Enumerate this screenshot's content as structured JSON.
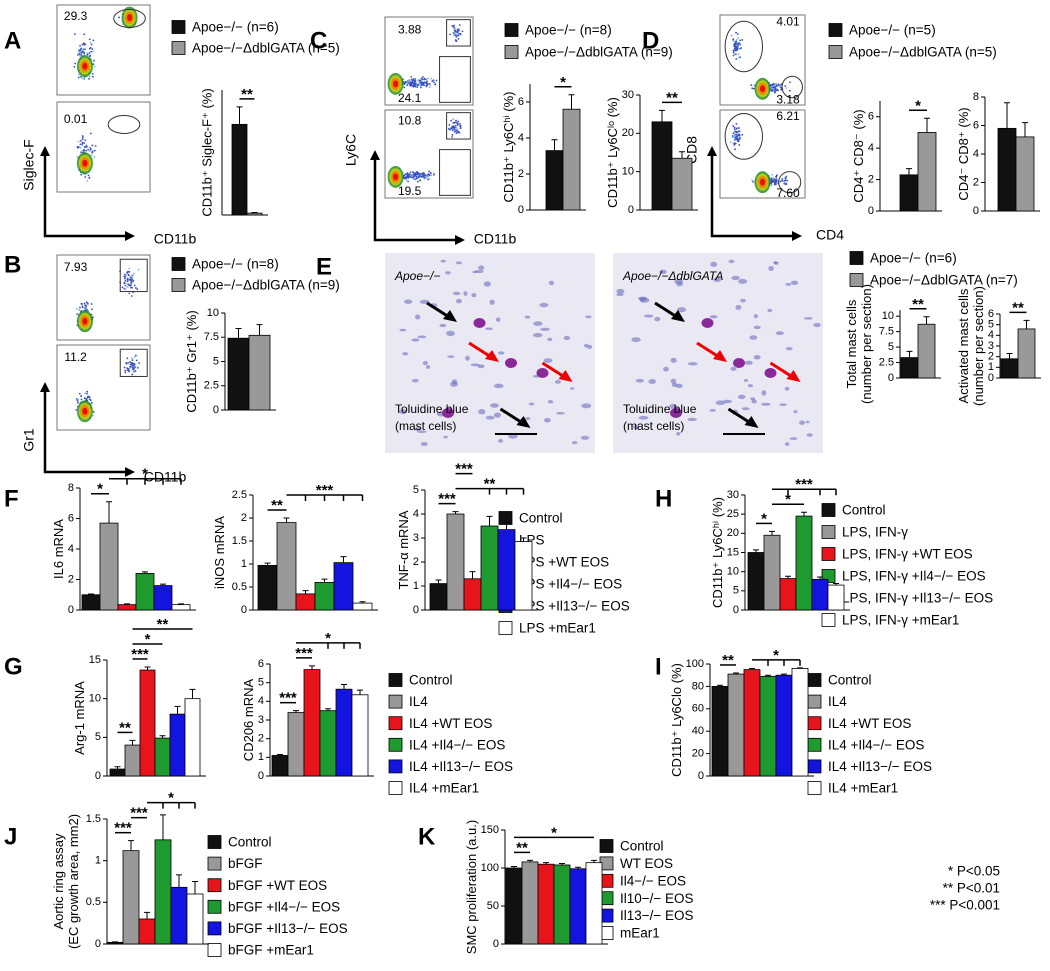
{
  "panel_letters": [
    "A",
    "B",
    "C",
    "D",
    "E",
    "F",
    "G",
    "H",
    "I",
    "J",
    "K"
  ],
  "flow_panels": [
    {
      "y_label": "Siglec-F",
      "x_label": "CD11b",
      "gates": [
        "29.3",
        "0.01"
      ]
    },
    {
      "y_label": "Gr1",
      "x_label": "CD11b",
      "gates": [
        "7.93",
        "11.2"
      ]
    },
    {
      "y_label": "Ly6C",
      "x_label": "CD11b",
      "gates": [
        "3.88",
        "24.1",
        "10.8",
        "19.5"
      ]
    },
    {
      "y_label": "CD8",
      "x_label": "CD4",
      "gates": [
        "4.01",
        "3.18",
        "6.21",
        "7.60"
      ]
    }
  ],
  "histology": {
    "labels": [
      "Apoe−/−",
      "Apoe−/−ΔdblGATA"
    ],
    "stain": [
      "Toluidine blue",
      "(mast cells)"
    ]
  },
  "legends": [
    {
      "items": [
        "Apoe−/− (n=6)",
        "Apoe−/−ΔdblGATA (n=5)"
      ]
    },
    {
      "items": [
        "Apoe−/− (n=8)",
        "Apoe−/−ΔdblGATA (n=9)"
      ]
    },
    {
      "items": [
        "Apoe−/− (n=8)",
        "Apoe−/−ΔdblGATA (n=9)"
      ]
    },
    {
      "items": [
        "Apoe−/− (n=5)",
        "Apoe−/−ΔdblGATA (n=5)"
      ]
    },
    {
      "items": [
        "Apoe−/− (n=6)",
        "Apoe−/−ΔdblGATA (n=7)"
      ]
    },
    {
      "items": [
        "Control",
        "LPS",
        "LPS +WT EOS",
        "LPS +Il4−/− EOS",
        "LPS +Il13−/− EOS",
        "LPS +mEar1"
      ]
    },
    {
      "items": [
        "Control",
        "LPS, IFN-γ",
        "LPS, IFN-γ +WT EOS",
        "LPS, IFN-γ +Il4−/− EOS",
        "LPS, IFN-γ +Il13−/− EOS",
        "LPS, IFN-γ +mEar1"
      ]
    },
    {
      "items": [
        "Control",
        "IL4",
        "IL4 +WT EOS",
        "IL4 +Il4−/− EOS",
        "IL4 +Il13−/− EOS",
        "IL4 +mEar1"
      ]
    },
    {
      "items": [
        "Control",
        "IL4",
        "IL4 +WT EOS",
        "IL4 +Il4−/− EOS",
        "IL4 +Il13−/− EOS",
        "IL4 +mEar1"
      ]
    },
    {
      "items": [
        "Control",
        "bFGF",
        "bFGF +WT EOS",
        "bFGF +Il4−/− EOS",
        "bFGF +Il13−/− EOS",
        "bFGF +mEar1"
      ]
    },
    {
      "items": [
        "Control",
        "WT EOS",
        "Il4−/− EOS",
        "Il10−/− EOS",
        "Il13−/− EOS",
        "mEar1"
      ]
    }
  ],
  "significance_key": [
    "* P<0.05",
    "** P<0.01",
    "*** P<0.001"
  ],
  "chart_data": [
    {
      "type": "bar",
      "ylabel": [
        "CD11b⁺ Siglec-F⁺ (%)"
      ],
      "values": [
        14.5,
        0.3
      ],
      "errors": [
        2.8,
        0.1
      ],
      "colors": [
        "#111111",
        "#999999"
      ],
      "ylim": [
        0,
        20
      ],
      "sig": [
        {
          "text": "**",
          "bars": [
            0,
            1
          ]
        }
      ]
    },
    {
      "type": "bar",
      "ylabel": [
        "CD11b⁺ Gr1⁺ (%)"
      ],
      "values": [
        7.4,
        7.7
      ],
      "errors": [
        1.0,
        1.1
      ],
      "colors": [
        "#111111",
        "#999999"
      ],
      "ylim": [
        0,
        10
      ],
      "yticks": [
        0,
        2.5,
        5,
        7.5,
        10
      ],
      "sig": []
    },
    {
      "type": "bar",
      "ylabel": [
        "CD11b⁺ Ly6Cʰⁱ (%)"
      ],
      "values": [
        3.3,
        5.6
      ],
      "errors": [
        0.6,
        0.8
      ],
      "colors": [
        "#111111",
        "#999999"
      ],
      "ylim": [
        0,
        7
      ],
      "yticks": [
        0,
        2,
        4,
        6
      ],
      "sig": [
        {
          "text": "*",
          "bars": [
            0,
            1
          ]
        }
      ]
    },
    {
      "type": "bar",
      "ylabel": [
        "CD11b⁺ Ly6Cˡᵒ (%)"
      ],
      "values": [
        23,
        13.5
      ],
      "errors": [
        3,
        1.7
      ],
      "colors": [
        "#111111",
        "#999999"
      ],
      "ylim": [
        0,
        30
      ],
      "yticks": [
        0,
        10,
        20,
        30
      ],
      "sig": [
        {
          "text": "**",
          "bars": [
            0,
            1
          ]
        }
      ]
    },
    {
      "type": "bar",
      "ylabel": [
        "CD4⁺ CD8⁻ (%)"
      ],
      "values": [
        2.3,
        5.0
      ],
      "errors": [
        0.4,
        0.9
      ],
      "colors": [
        "#111111",
        "#999999"
      ],
      "ylim": [
        0,
        7
      ],
      "yticks": [
        0,
        2,
        4,
        6
      ],
      "sig": [
        {
          "text": "*",
          "bars": [
            0,
            1
          ]
        }
      ]
    },
    {
      "type": "bar",
      "ylabel": [
        "CD4⁻ CD8⁺ (%)"
      ],
      "values": [
        5.8,
        5.2
      ],
      "errors": [
        1.8,
        1.0
      ],
      "colors": [
        "#111111",
        "#999999"
      ],
      "ylim": [
        0,
        8
      ],
      "yticks": [
        0,
        2,
        4,
        6,
        8
      ],
      "sig": []
    },
    {
      "type": "bar",
      "ylabel": [
        "Total mast cells",
        "(number per section)"
      ],
      "values": [
        3.3,
        8.7
      ],
      "errors": [
        1.0,
        1.2
      ],
      "colors": [
        "#111111",
        "#999999"
      ],
      "ylim": [
        0,
        11
      ],
      "yticks": [
        0,
        2.5,
        5,
        7.5,
        10
      ],
      "sig": [
        {
          "text": "**",
          "bars": [
            0,
            1
          ]
        }
      ]
    },
    {
      "type": "bar",
      "ylabel": [
        "Activated mast cells",
        "(number per section)"
      ],
      "values": [
        1.8,
        4.6
      ],
      "errors": [
        0.5,
        0.8
      ],
      "colors": [
        "#111111",
        "#999999"
      ],
      "ylim": [
        0,
        6
      ],
      "yticks": [
        0,
        1,
        2,
        3,
        4,
        5,
        6
      ],
      "sig": [
        {
          "text": "**",
          "bars": [
            0,
            1
          ]
        }
      ]
    },
    {
      "type": "bar",
      "ylabel": [
        "IL6 mRNA"
      ],
      "values": [
        1,
        5.7,
        0.35,
        2.4,
        1.6,
        0.35
      ],
      "errors": [
        0.05,
        1.4,
        0.05,
        0.1,
        0.1,
        0.05
      ],
      "colors": [
        "#111111",
        "#999999",
        "#e8141b",
        "#1f9a2e",
        "#1414e0",
        "#ffffff"
      ],
      "ylim": [
        0,
        8
      ],
      "yticks": [
        0,
        2,
        4,
        6,
        8
      ],
      "sig": [
        {
          "text": "*",
          "bars": [
            0,
            1
          ]
        },
        {
          "text": "*",
          "bars": [
            1,
            2,
            3,
            4,
            5
          ]
        }
      ]
    },
    {
      "type": "bar",
      "ylabel": [
        "iNOS mRNA"
      ],
      "values": [
        0.97,
        1.9,
        0.35,
        0.6,
        1.03,
        0.15
      ],
      "errors": [
        0.05,
        0.1,
        0.07,
        0.07,
        0.13,
        0.03
      ],
      "colors": [
        "#111111",
        "#999999",
        "#e8141b",
        "#1f9a2e",
        "#1414e0",
        "#ffffff"
      ],
      "ylim": [
        0,
        2.5
      ],
      "yticks": [
        0,
        0.5,
        1,
        1.5,
        2,
        2.5
      ],
      "sig": [
        {
          "text": "**",
          "bars": [
            0,
            1
          ]
        },
        {
          "text": "***",
          "bars": [
            1,
            2,
            3,
            4,
            5
          ]
        }
      ]
    },
    {
      "type": "bar",
      "ylabel": [
        "TNF-α mRNA"
      ],
      "values": [
        1.1,
        4.0,
        1.3,
        3.5,
        3.35,
        2.85
      ],
      "errors": [
        0.15,
        0.1,
        0.3,
        0.4,
        0.3,
        0.15
      ],
      "colors": [
        "#111111",
        "#999999",
        "#e8141b",
        "#1f9a2e",
        "#1414e0",
        "#ffffff"
      ],
      "ylim": [
        0,
        5
      ],
      "yticks": [
        0,
        1,
        2,
        3,
        4,
        5
      ],
      "sig": [
        {
          "text": "***",
          "bars": [
            0,
            1
          ]
        },
        {
          "text": "**",
          "bars": [
            1,
            3,
            4,
            5
          ]
        },
        {
          "text": "***",
          "bars": [
            1,
            2
          ]
        }
      ]
    },
    {
      "type": "bar",
      "ylabel": [
        "CD11b⁺ Ly6Cʰⁱ (%)"
      ],
      "values": [
        15,
        19.5,
        8.2,
        24.5,
        8,
        6.5
      ],
      "errors": [
        0.7,
        1,
        0.6,
        1,
        0.6,
        0.4
      ],
      "colors": [
        "#111111",
        "#999999",
        "#e8141b",
        "#1f9a2e",
        "#1414e0",
        "#ffffff"
      ],
      "ylim": [
        0,
        30
      ],
      "yticks": [
        0,
        5,
        10,
        15,
        20,
        25,
        30
      ],
      "sig": [
        {
          "text": "*",
          "bars": [
            0,
            1
          ]
        },
        {
          "text": "*",
          "bars": [
            1,
            3
          ]
        },
        {
          "text": "***",
          "bars": [
            1,
            2,
            4,
            5
          ]
        }
      ]
    },
    {
      "type": "bar",
      "ylabel": [
        "Arg-1 mRNA"
      ],
      "values": [
        0.9,
        4,
        13.7,
        4.9,
        8,
        10
      ],
      "errors": [
        0.3,
        0.6,
        0.4,
        0.3,
        1,
        1.2
      ],
      "colors": [
        "#111111",
        "#999999",
        "#e8141b",
        "#1f9a2e",
        "#1414e0",
        "#ffffff"
      ],
      "ylim": [
        0,
        15
      ],
      "yticks": [
        0,
        5,
        10,
        15
      ],
      "sig": [
        {
          "text": "**",
          "bars": [
            0,
            1
          ]
        },
        {
          "text": "***",
          "bars": [
            1,
            2
          ]
        },
        {
          "text": "*",
          "bars": [
            1,
            3
          ]
        },
        {
          "text": "**",
          "bars": [
            1,
            5
          ]
        }
      ]
    },
    {
      "type": "bar",
      "ylabel": [
        "CD206 mRNA"
      ],
      "values": [
        1.1,
        3.4,
        5.7,
        3.5,
        4.65,
        4.35
      ],
      "errors": [
        0.05,
        0.1,
        0.2,
        0.1,
        0.25,
        0.25
      ],
      "colors": [
        "#111111",
        "#999999",
        "#e8141b",
        "#1f9a2e",
        "#1414e0",
        "#ffffff"
      ],
      "ylim": [
        0,
        6
      ],
      "yticks": [
        0,
        1,
        2,
        3,
        4,
        5,
        6
      ],
      "sig": [
        {
          "text": "***",
          "bars": [
            0,
            1
          ]
        },
        {
          "text": "***",
          "bars": [
            1,
            2
          ]
        },
        {
          "text": "*",
          "bars": [
            1,
            3,
            4,
            5
          ]
        }
      ]
    },
    {
      "type": "bar",
      "ylabel": [
        "CD11b⁺ Ly6Clo (%)"
      ],
      "values": [
        80,
        91,
        95,
        89,
        90,
        96
      ],
      "errors": [
        1,
        1,
        1,
        1,
        1,
        0.5
      ],
      "colors": [
        "#111111",
        "#999999",
        "#e8141b",
        "#1f9a2e",
        "#1414e0",
        "#ffffff"
      ],
      "ylim": [
        0,
        100
      ],
      "yticks": [
        0,
        20,
        40,
        60,
        80,
        100
      ],
      "sig": [
        {
          "text": "**",
          "bars": [
            0,
            1
          ]
        },
        {
          "text": "*",
          "bars": [
            2,
            3,
            4,
            5
          ]
        }
      ]
    },
    {
      "type": "bar",
      "ylabel": [
        "Aortic ring assay",
        "(EC growth area, mm2)"
      ],
      "values": [
        0.02,
        1.12,
        0.3,
        1.25,
        0.68,
        0.6
      ],
      "errors": [
        0.005,
        0.12,
        0.08,
        0.3,
        0.15,
        0.15
      ],
      "colors": [
        "#111111",
        "#999999",
        "#e8141b",
        "#1f9a2e",
        "#1414e0",
        "#ffffff"
      ],
      "ylim": [
        0,
        1.5
      ],
      "yticks": [
        0,
        0.5,
        1,
        1.5
      ],
      "sig": [
        {
          "text": "***",
          "bars": [
            0,
            1
          ]
        },
        {
          "text": "***",
          "bars": [
            1,
            2
          ]
        },
        {
          "text": "*",
          "bars": [
            2,
            3,
            4,
            5
          ]
        }
      ]
    },
    {
      "type": "bar",
      "ylabel": [
        "SMC proliferation (a.u.)"
      ],
      "values": [
        100,
        108,
        105,
        104,
        99,
        107
      ],
      "errors": [
        2,
        2,
        2,
        2,
        2,
        3
      ],
      "colors": [
        "#111111",
        "#999999",
        "#e8141b",
        "#1f9a2e",
        "#1414e0",
        "#ffffff"
      ],
      "ylim": [
        0,
        150
      ],
      "yticks": [
        0,
        50,
        100,
        150
      ],
      "sig": [
        {
          "text": "**",
          "bars": [
            0,
            1
          ]
        },
        {
          "text": "*",
          "bars": [
            0,
            5
          ]
        }
      ]
    }
  ]
}
